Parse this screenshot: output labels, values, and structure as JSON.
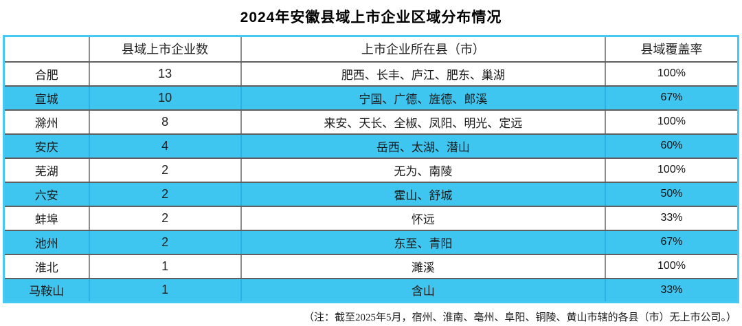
{
  "title": "2024年安徽县域上市企业区域分布情况",
  "note": "（注：截至2025年5月，宿州、淮南、亳州、阜阳、铜陵、黄山市辖的各县（市）无上市公司。）",
  "colors": {
    "row_highlight": "#3ec6f0",
    "outer_border": "#45c9f3",
    "grid_horizontal": "#5f5f5f",
    "grid_vertical": "#8d8d8d"
  },
  "chart_data": {
    "type": "table",
    "title": "2024年安徽县域上市企业区域分布情况",
    "columns": [
      "",
      "县域上市企业数",
      "上市企业所在县（市）",
      "县域覆盖率"
    ],
    "rows": [
      [
        "合肥",
        "13",
        "肥西、长丰、庐江、肥东、巢湖",
        "100%"
      ],
      [
        "宣城",
        "10",
        "宁国、广德、旌德、郎溪",
        "67%"
      ],
      [
        "滁州",
        "8",
        "来安、天长、全椒、凤阳、明光、定远",
        "100%"
      ],
      [
        "安庆",
        "4",
        "岳西、太湖、潜山",
        "60%"
      ],
      [
        "芜湖",
        "2",
        "无为、南陵",
        "100%"
      ],
      [
        "六安",
        "2",
        "霍山、舒城",
        "50%"
      ],
      [
        "蚌埠",
        "2",
        "怀远",
        "33%"
      ],
      [
        "池州",
        "2",
        "东至、青阳",
        "67%"
      ],
      [
        "淮北",
        "1",
        "濉溪",
        "100%"
      ],
      [
        "马鞍山",
        "1",
        "含山",
        "33%"
      ]
    ],
    "layout_hints": {
      "striped": "even data rows highlighted cyan starting with second row",
      "header_background": "white",
      "note_position": "bottom-right"
    }
  }
}
